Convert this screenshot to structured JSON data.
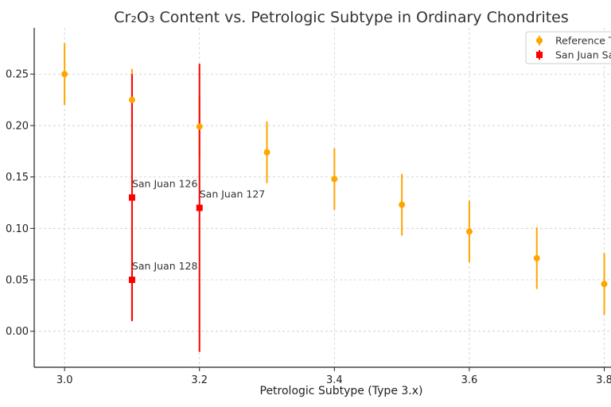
{
  "chart_data": {
    "type": "scatter",
    "title": "Cr₂O₃ Content vs. Petrologic Subtype in Ordinary Chondrites",
    "xlabel": "Petrologic Subtype (Type 3.x)",
    "ylabel": "",
    "xlim": [
      2.955,
      3.81
    ],
    "ylim": [
      -0.035,
      0.295
    ],
    "x_ticks": [
      3.0,
      3.2,
      3.4,
      3.6,
      3.8
    ],
    "x_tick_labels": [
      "3.0",
      "3.2",
      "3.4",
      "3.6",
      "3.8"
    ],
    "y_ticks": [
      0.0,
      0.05,
      0.1,
      0.15,
      0.2,
      0.25
    ],
    "y_tick_labels": [
      "0.00",
      "0.05",
      "0.10",
      "0.15",
      "0.20",
      "0.25"
    ],
    "grid": true,
    "legend_position": "top-right",
    "series": [
      {
        "name": "Reference T",
        "color": "#ffa500",
        "marker": "circle",
        "x": [
          3.0,
          3.1,
          3.2,
          3.3,
          3.4,
          3.5,
          3.6,
          3.7,
          3.8
        ],
        "y": [
          0.25,
          0.225,
          0.199,
          0.174,
          0.148,
          0.123,
          0.097,
          0.071,
          0.046
        ],
        "yerr": [
          0.03,
          0.03,
          0.03,
          0.03,
          0.03,
          0.03,
          0.03,
          0.03,
          0.03
        ]
      },
      {
        "name": "San Juan Sa",
        "color": "#ff0000",
        "marker": "square",
        "x": [
          3.1,
          3.2,
          3.1
        ],
        "y": [
          0.13,
          0.12,
          0.05
        ],
        "yerr": [
          0.12,
          0.14,
          0.04
        ],
        "labels": [
          "San Juan 126",
          "San Juan 127",
          "San Juan 128"
        ]
      }
    ]
  }
}
